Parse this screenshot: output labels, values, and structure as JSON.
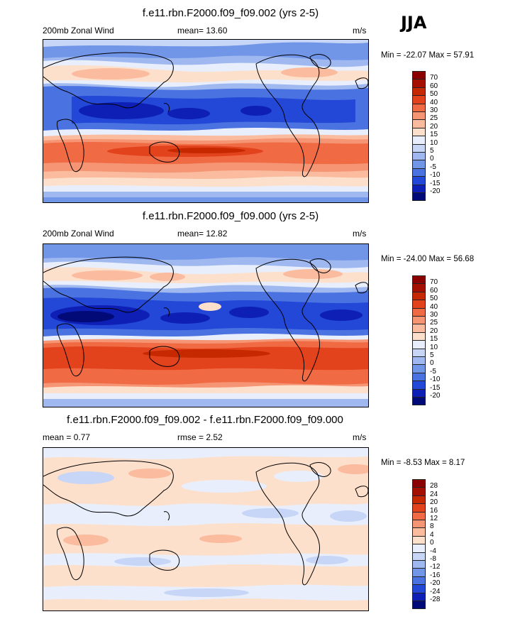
{
  "season": "JJA",
  "chart_data": [
    {
      "type": "heatmap",
      "title": "f.e11.rbn.F2000.f09_f09.002 (yrs 2-5)",
      "left_label": "200mb Zonal Wind",
      "stat_label": "mean=",
      "stat_value": "13.60",
      "units": "m/s",
      "min_label": "Min =",
      "min_value": "-22.07",
      "max_label": "Max =",
      "max_value": "57.91",
      "colorbar_levels": [
        "70",
        "60",
        "50",
        "40",
        "30",
        "25",
        "20",
        "15",
        "10",
        "5",
        "0",
        "-5",
        "-10",
        "-15",
        "-20"
      ],
      "colorbar_colors": [
        "#8b0000",
        "#a50f00",
        "#c62800",
        "#e2421c",
        "#f06a44",
        "#f59574",
        "#fabb9e",
        "#fde0cc",
        "#e8eefb",
        "#c7d6f6",
        "#9fb8f0",
        "#7196e8",
        "#4a72e0",
        "#2347d6",
        "#0d1fb5",
        "#020a78"
      ]
    },
    {
      "type": "heatmap",
      "title": "f.e11.rbn.F2000.f09_f09.000 (yrs 2-5)",
      "left_label": "200mb Zonal Wind",
      "stat_label": "mean=",
      "stat_value": "12.82",
      "units": "m/s",
      "min_label": "Min =",
      "min_value": "-24.00",
      "max_label": "Max =",
      "max_value": "56.68",
      "colorbar_levels": [
        "70",
        "60",
        "50",
        "40",
        "30",
        "25",
        "20",
        "15",
        "10",
        "5",
        "0",
        "-5",
        "-10",
        "-15",
        "-20"
      ],
      "colorbar_colors": [
        "#8b0000",
        "#a50f00",
        "#c62800",
        "#e2421c",
        "#f06a44",
        "#f59574",
        "#fabb9e",
        "#fde0cc",
        "#e8eefb",
        "#c7d6f6",
        "#9fb8f0",
        "#7196e8",
        "#4a72e0",
        "#2347d6",
        "#0d1fb5",
        "#020a78"
      ]
    },
    {
      "type": "heatmap",
      "title": "f.e11.rbn.F2000.f09_f09.002 - f.e11.rbn.F2000.f09_f09.000",
      "left_label": "mean =",
      "left_value": "0.77",
      "stat_label": "rmse =",
      "stat_value": "2.52",
      "units": "m/s",
      "min_label": "Min =",
      "min_value": "-8.53",
      "max_label": "Max =",
      "max_value": "8.17",
      "colorbar_levels": [
        "28",
        "24",
        "20",
        "16",
        "12",
        "8",
        "4",
        "0",
        "-4",
        "-8",
        "-12",
        "-16",
        "-20",
        "-24",
        "-28"
      ],
      "colorbar_colors": [
        "#8b0000",
        "#a50f00",
        "#c62800",
        "#e2421c",
        "#f06a44",
        "#f59574",
        "#fabb9e",
        "#fde0cc",
        "#e8eefb",
        "#c7d6f6",
        "#9fb8f0",
        "#7196e8",
        "#4a72e0",
        "#2347d6",
        "#0d1fb5",
        "#020a78"
      ]
    }
  ]
}
